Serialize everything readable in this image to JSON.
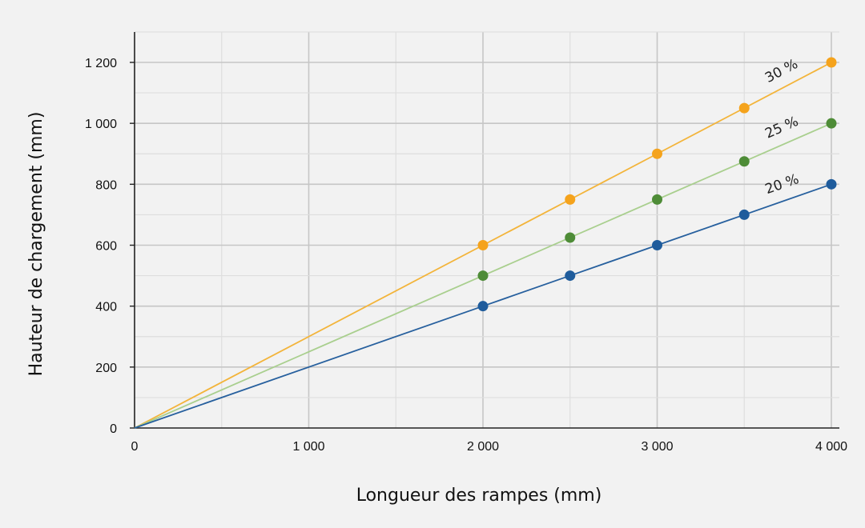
{
  "chart_data": {
    "type": "line",
    "xlabel": "Longueur des rampes (mm)",
    "ylabel": "Hauteur de chargement (mm)",
    "xlim": [
      0,
      4000
    ],
    "ylim": [
      0,
      1300
    ],
    "x_ticks": [
      0,
      1000,
      2000,
      3000,
      4000
    ],
    "x_tick_labels": [
      "0",
      "1 000",
      "2 000",
      "3 000",
      "4 000"
    ],
    "y_ticks": [
      0,
      200,
      400,
      600,
      800,
      1000,
      1200
    ],
    "y_tick_labels": [
      "0",
      "200",
      "400",
      "600",
      "800",
      "1 000",
      "1 200"
    ],
    "grid": true,
    "series": [
      {
        "name": "30 %",
        "color": "#f3b43a",
        "marker_color": "#f5a31c",
        "x": [
          0,
          2000,
          2500,
          3000,
          3500,
          4000
        ],
        "y": [
          0,
          600,
          750,
          900,
          1050,
          1200
        ],
        "markers": [
          false,
          true,
          true,
          true,
          true,
          true
        ]
      },
      {
        "name": "25 %",
        "color": "#a9cf8e",
        "marker_color": "#4e8c37",
        "x": [
          0,
          2000,
          2500,
          3000,
          3500,
          4000
        ],
        "y": [
          0,
          500,
          625,
          750,
          875,
          1000
        ],
        "markers": [
          false,
          true,
          true,
          true,
          true,
          true
        ]
      },
      {
        "name": "20 %",
        "color": "#27609e",
        "marker_color": "#1f5c9c",
        "x": [
          0,
          2000,
          2500,
          3000,
          3500,
          4000
        ],
        "y": [
          0,
          400,
          500,
          600,
          700,
          800
        ],
        "markers": [
          false,
          true,
          true,
          true,
          true,
          true
        ]
      }
    ]
  }
}
